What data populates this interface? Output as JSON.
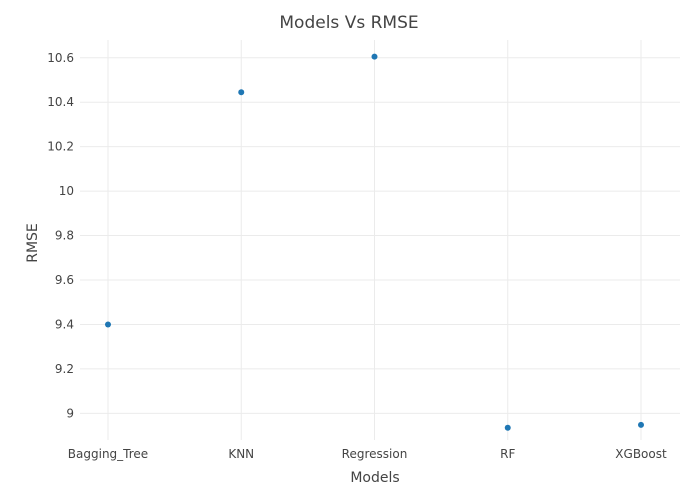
{
  "chart_data": {
    "type": "scatter",
    "title": "Models Vs RMSE",
    "xlabel": "Models",
    "ylabel": "RMSE",
    "categories": [
      "Bagging_Tree",
      "KNN",
      "Regression",
      "RF",
      "XGBoost"
    ],
    "values": [
      9.4,
      10.445,
      10.605,
      8.935,
      8.948
    ],
    "ylim": [
      8.88,
      10.68
    ],
    "yticks": [
      9,
      9.2,
      9.4,
      9.6,
      9.8,
      10,
      10.2,
      10.4,
      10.6
    ],
    "ytick_labels": [
      "9",
      "9.2",
      "9.4",
      "9.6",
      "9.8",
      "10",
      "10.2",
      "10.4",
      "10.6"
    ],
    "grid": true,
    "marker_color": "#1f77b4"
  }
}
